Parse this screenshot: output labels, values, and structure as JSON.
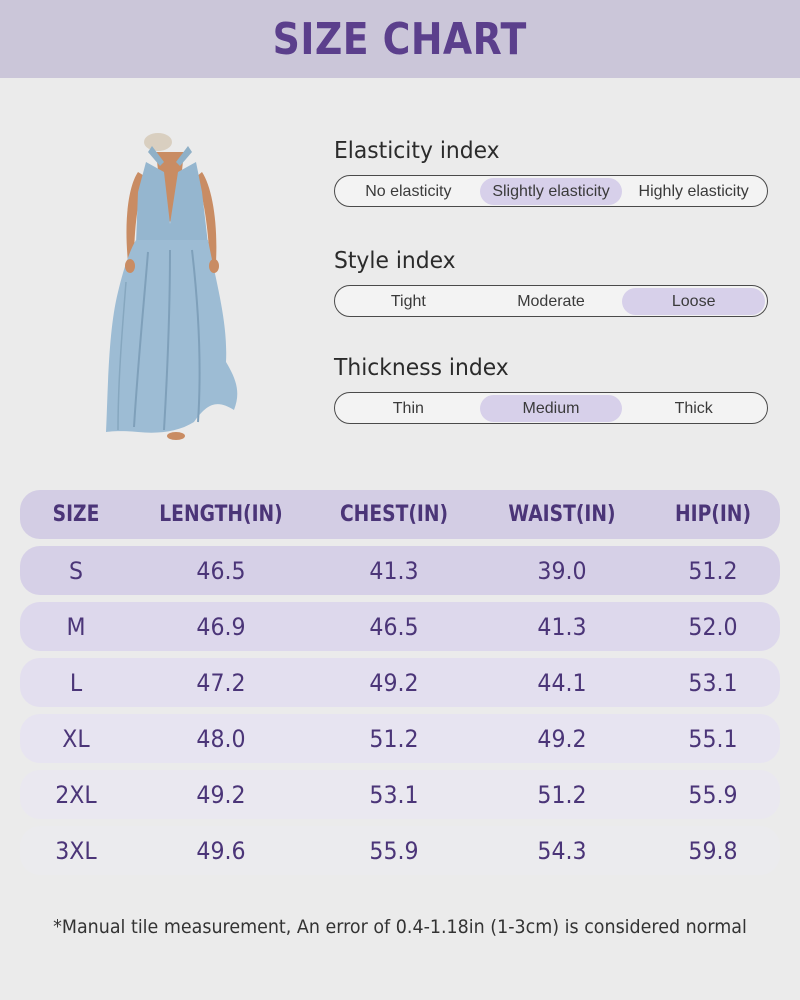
{
  "header": {
    "title": "SIZE CHART"
  },
  "indices": [
    {
      "title": "Elasticity index",
      "options": [
        "No elasticity",
        "Slightly elasticity",
        "Highly elasticity"
      ],
      "selected": 1
    },
    {
      "title": "Style index",
      "options": [
        "Tight",
        "Moderate",
        "Loose"
      ],
      "selected": 2
    },
    {
      "title": "Thickness index",
      "options": [
        "Thin",
        "Medium",
        "Thick"
      ],
      "selected": 1
    }
  ],
  "table": {
    "columns": [
      "SIZE",
      "LENGTH(IN)",
      "CHEST(IN)",
      "WAIST(IN)",
      "HIP(IN)"
    ],
    "rows": [
      [
        "S",
        "46.5",
        "41.3",
        "39.0",
        "51.2"
      ],
      [
        "M",
        "46.9",
        "46.5",
        "41.3",
        "52.0"
      ],
      [
        "L",
        "47.2",
        "49.2",
        "44.1",
        "53.1"
      ],
      [
        "XL",
        "48.0",
        "51.2",
        "49.2",
        "55.1"
      ],
      [
        "2XL",
        "49.2",
        "53.1",
        "51.2",
        "55.9"
      ],
      [
        "3XL",
        "49.6",
        "55.9",
        "54.3",
        "59.8"
      ]
    ]
  },
  "note": "*Manual tile measurement, An error of 0.4-1.18in (1-3cm) is considered normal",
  "colors": {
    "header_bg": "#cbc6d9",
    "title": "#5b3f8c",
    "active_option": "#d7d0ea",
    "table_text": "#4b3578"
  }
}
